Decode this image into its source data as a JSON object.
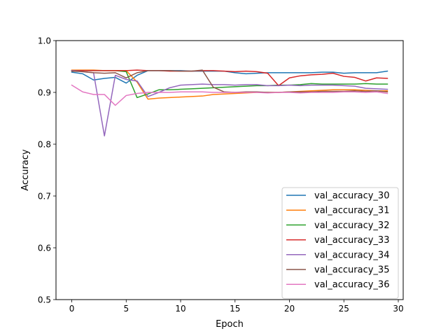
{
  "chart_data": {
    "type": "line",
    "title": "",
    "xlabel": "Epoch",
    "ylabel": "Accuracy",
    "xlim": [
      -1.45,
      30.45
    ],
    "ylim": [
      0.5,
      1.0
    ],
    "xticks": [
      0,
      5,
      10,
      15,
      20,
      25,
      30
    ],
    "yticks": [
      0.5,
      0.6,
      0.7,
      0.8,
      0.9,
      1.0
    ],
    "xtick_labels": [
      "0",
      "5",
      "10",
      "15",
      "20",
      "25",
      "30"
    ],
    "ytick_labels": [
      "0.5",
      "0.6",
      "0.7",
      "0.8",
      "0.9",
      "1.0"
    ],
    "grid": false,
    "legend_position": "lower-right",
    "x": [
      0,
      1,
      2,
      3,
      4,
      5,
      6,
      7,
      8,
      9,
      10,
      11,
      12,
      13,
      14,
      15,
      16,
      17,
      18,
      19,
      20,
      21,
      22,
      23,
      24,
      25,
      26,
      27,
      28,
      29
    ],
    "series": [
      {
        "name": "val_accuracy_30",
        "color": "#1f77b4",
        "values": [
          0.939,
          0.936,
          0.924,
          0.927,
          0.929,
          0.918,
          0.933,
          0.942,
          0.942,
          0.942,
          0.942,
          0.941,
          0.941,
          0.941,
          0.941,
          0.938,
          0.936,
          0.937,
          0.938,
          0.938,
          0.938,
          0.938,
          0.938,
          0.939,
          0.939,
          0.937,
          0.938,
          0.938,
          0.938,
          0.941
        ]
      },
      {
        "name": "val_accuracy_31",
        "color": "#ff7f0e",
        "values": [
          0.943,
          0.943,
          0.943,
          0.942,
          0.942,
          0.942,
          0.92,
          0.887,
          0.889,
          0.89,
          0.891,
          0.892,
          0.893,
          0.896,
          0.897,
          0.898,
          0.899,
          0.9,
          0.9,
          0.9,
          0.901,
          0.902,
          0.903,
          0.904,
          0.905,
          0.905,
          0.905,
          0.904,
          0.903,
          0.903
        ]
      },
      {
        "name": "val_accuracy_32",
        "color": "#2ca02c",
        "values": [
          0.942,
          0.942,
          0.942,
          0.942,
          0.942,
          0.94,
          0.89,
          0.897,
          0.905,
          0.905,
          0.906,
          0.907,
          0.908,
          0.909,
          0.91,
          0.911,
          0.912,
          0.913,
          0.913,
          0.914,
          0.914,
          0.915,
          0.917,
          0.916,
          0.916,
          0.916,
          0.916,
          0.917,
          0.916,
          0.916
        ]
      },
      {
        "name": "val_accuracy_33",
        "color": "#d62728",
        "values": [
          0.942,
          0.942,
          0.942,
          0.942,
          0.942,
          0.942,
          0.943,
          0.942,
          0.942,
          0.941,
          0.941,
          0.941,
          0.942,
          0.942,
          0.941,
          0.94,
          0.941,
          0.94,
          0.937,
          0.913,
          0.928,
          0.932,
          0.934,
          0.935,
          0.937,
          0.931,
          0.929,
          0.922,
          0.928,
          0.927
        ]
      },
      {
        "name": "val_accuracy_34",
        "color": "#9467bd",
        "values": [
          0.942,
          0.94,
          0.938,
          0.816,
          0.933,
          0.925,
          0.922,
          0.892,
          0.9,
          0.909,
          0.914,
          0.915,
          0.916,
          0.915,
          0.915,
          0.914,
          0.915,
          0.915,
          0.913,
          0.913,
          0.914,
          0.913,
          0.914,
          0.914,
          0.914,
          0.913,
          0.912,
          0.908,
          0.907,
          0.906
        ]
      },
      {
        "name": "val_accuracy_35",
        "color": "#8c564b",
        "values": [
          0.941,
          0.94,
          0.938,
          0.937,
          0.938,
          0.928,
          0.938,
          0.942,
          0.942,
          0.942,
          0.941,
          0.941,
          0.943,
          0.91,
          0.901,
          0.9,
          0.901,
          0.901,
          0.9,
          0.9,
          0.901,
          0.901,
          0.901,
          0.902,
          0.902,
          0.902,
          0.903,
          0.902,
          0.903,
          0.901
        ]
      },
      {
        "name": "val_accuracy_36",
        "color": "#e377c2",
        "values": [
          0.914,
          0.901,
          0.896,
          0.896,
          0.875,
          0.894,
          0.898,
          0.9,
          0.9,
          0.9,
          0.901,
          0.901,
          0.901,
          0.9,
          0.9,
          0.9,
          0.9,
          0.9,
          0.899,
          0.9,
          0.9,
          0.899,
          0.9,
          0.9,
          0.9,
          0.901,
          0.901,
          0.9,
          0.901,
          0.898
        ]
      }
    ]
  }
}
